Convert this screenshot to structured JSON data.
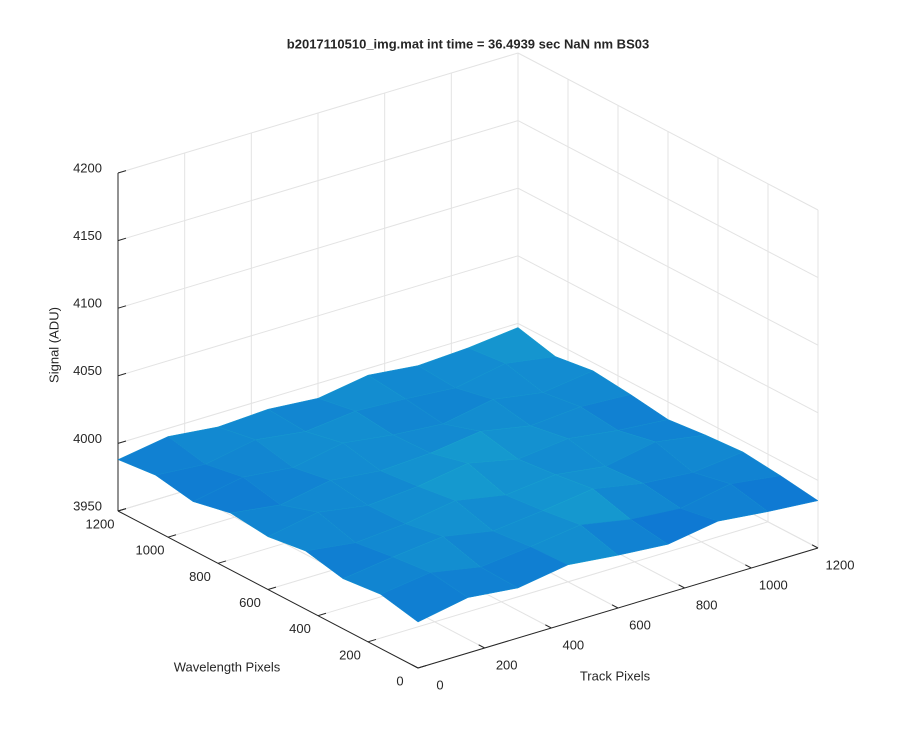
{
  "chart_data": {
    "type": "surface3d",
    "title": "b2017110510_img.mat int time = 36.4939 sec  NaN nm BS03",
    "xlabel": "Track Pixels",
    "ylabel": "Wavelength Pixels",
    "zlabel": "Signal (ADU)",
    "x": [
      0,
      150,
      300,
      450,
      600,
      750,
      900,
      1050,
      1200
    ],
    "y": [
      0,
      150,
      300,
      450,
      600,
      750,
      900,
      1050,
      1200
    ],
    "z": [
      [
        3984,
        3991,
        3987,
        3993,
        3989,
        3986,
        3992,
        3988,
        3985
      ],
      [
        3990,
        3995,
        3988,
        3992,
        3997,
        3990,
        3987,
        3994,
        3989
      ],
      [
        3987,
        3992,
        3996,
        3989,
        3993,
        3998,
        3991,
        3988,
        3992
      ],
      [
        3993,
        3988,
        3991,
        3997,
        3990,
        3994,
        3989,
        3996,
        3990
      ],
      [
        3989,
        3996,
        3990,
        3993,
        3999,
        3991,
        3995,
        3990,
        3987
      ],
      [
        3992,
        3987,
        3994,
        3990,
        3992,
        3997,
        3990,
        3993,
        3991
      ],
      [
        3986,
        3993,
        3989,
        3996,
        3991,
        3988,
        3995,
        3989,
        3994
      ],
      [
        3991,
        3988,
        3995,
        3990,
        3994,
        3992,
        3989,
        3996,
        3990
      ],
      [
        3988,
        3994,
        3990,
        3992,
        3989,
        3995,
        3991,
        3993,
        3997
      ]
    ],
    "colormap": [
      "#0a5fd6",
      "#1ab0cc"
    ],
    "xlim": [
      0,
      1200
    ],
    "xticks": [
      0,
      200,
      400,
      600,
      800,
      1000,
      1200
    ],
    "ylim": [
      0,
      1200
    ],
    "yticks": [
      0,
      200,
      400,
      600,
      800,
      1000,
      1200
    ],
    "zlim": [
      3950,
      4200
    ],
    "zticks": [
      3950,
      4000,
      4050,
      4100,
      4150,
      4200
    ],
    "grid": true
  }
}
